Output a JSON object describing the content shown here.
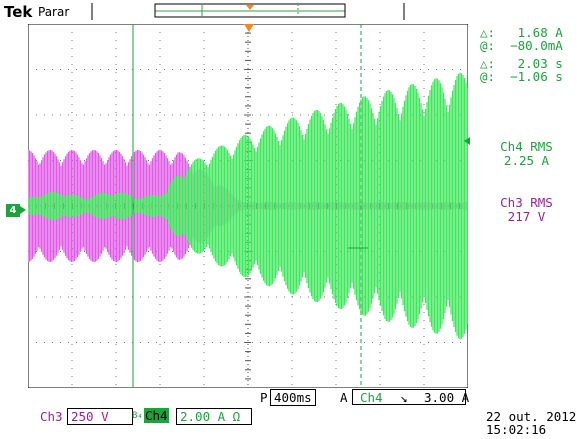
{
  "header": {
    "brand": "Tek",
    "status": "Parar"
  },
  "cursors": {
    "delta_amp": "△:   1.68 A",
    "at_amp": "@:  −80.0mA",
    "delta_time": "△:   2.03 s",
    "at_time": "@:  −1.06 s"
  },
  "measurements": {
    "ch4_label": "Ch4 RMS",
    "ch4_value": "2.25 A",
    "ch3_label": "Ch3 RMS",
    "ch3_value": "217 V"
  },
  "channel_marker": "4",
  "timebase": {
    "prefix": "P",
    "scale": "400ms",
    "trigger_mode": "A",
    "trigger_source": "Ch4",
    "trigger_slope": "↘",
    "trigger_level": "3.00 A"
  },
  "channels": {
    "ch3_name": "Ch3",
    "ch3_scale": "250 V",
    "bw_flag": "B₄",
    "ch4_name": "Ch4",
    "ch4_scale": "2.00 A Ω"
  },
  "datetime": {
    "date": "22 out. 2012",
    "time": "15:02:16"
  },
  "colors": {
    "ch3": "#e05ae8",
    "ch4": "#3ee85a",
    "ch4_text": "#1aa53a",
    "ch3_text": "#a21aa8"
  }
}
